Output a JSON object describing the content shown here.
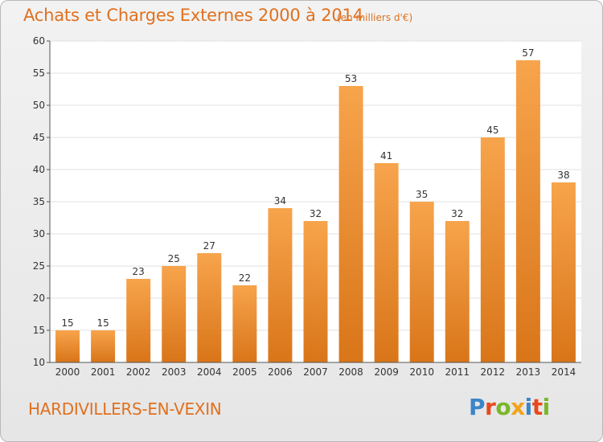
{
  "header": {
    "title": "Achats et Charges Externes 2000 à 2014",
    "subtitle": "(en milliers d'€)"
  },
  "footer": {
    "commune": "HARDIVILLERS-EN-VEXIN",
    "logo_text": "Proxiti"
  },
  "colors": {
    "bar_top": "#f7a44c",
    "bar_bottom": "#d97519",
    "accent": "#e0711f",
    "grid": "#e2e2e2",
    "axis": "#555555"
  },
  "chart_data": {
    "type": "bar",
    "categories": [
      "2000",
      "2001",
      "2002",
      "2003",
      "2004",
      "2005",
      "2006",
      "2007",
      "2008",
      "2009",
      "2010",
      "2011",
      "2012",
      "2013",
      "2014"
    ],
    "values": [
      15,
      15,
      23,
      25,
      27,
      22,
      34,
      32,
      53,
      41,
      35,
      32,
      45,
      57,
      38
    ],
    "xlabel": "",
    "ylabel": "",
    "ylim": [
      10,
      60
    ],
    "yticks": [
      10,
      15,
      20,
      25,
      30,
      35,
      40,
      45,
      50,
      55,
      60
    ],
    "grid": true,
    "legend": "none"
  }
}
